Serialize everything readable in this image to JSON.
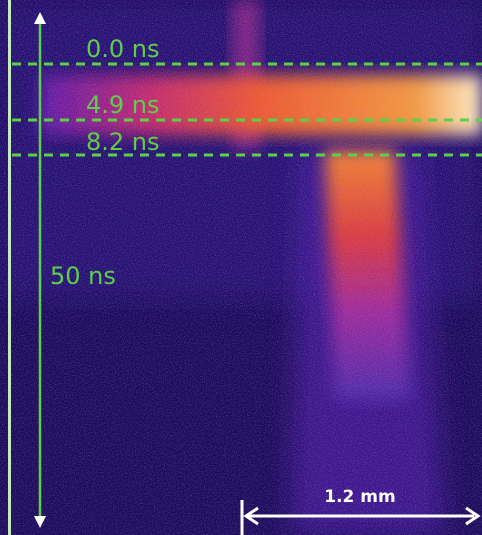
{
  "annotations": {
    "time_markers": [
      "0.0 ns",
      "4.9 ns",
      "8.2 ns"
    ],
    "time_span": "50 ns",
    "scale_bar": "1.2 mm"
  }
}
